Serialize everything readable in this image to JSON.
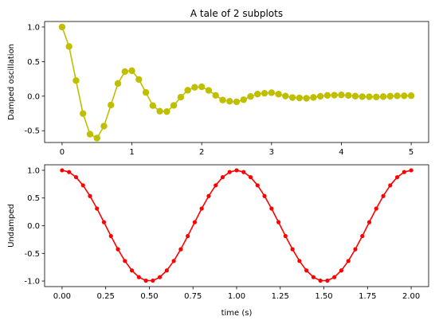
{
  "figure": {
    "title": "A tale of 2 subplots"
  },
  "chart_data": [
    {
      "type": "line",
      "title": "A tale of 2 subplots",
      "xlabel": "",
      "ylabel": "Damped oscillation",
      "xlim": [
        -0.25,
        5.25
      ],
      "ylim": [
        -0.67,
        1.08
      ],
      "xticks": [
        0,
        1,
        2,
        3,
        4,
        5
      ],
      "xtick_labels": [
        "0",
        "1",
        "2",
        "3",
        "4",
        "5"
      ],
      "yticks": [
        -0.5,
        0.0,
        0.5,
        1.0
      ],
      "ytick_labels": [
        "-0.5",
        "0.0",
        "0.5",
        "1.0"
      ],
      "grid": false,
      "color": "#bfbf00",
      "marker": "circle",
      "x": [
        0.0,
        0.1,
        0.2,
        0.3,
        0.4,
        0.5,
        0.6,
        0.7,
        0.8,
        0.9,
        1.0,
        1.1,
        1.2,
        1.3,
        1.4,
        1.5,
        1.6,
        1.7,
        1.8,
        1.9,
        2.0,
        2.1,
        2.2,
        2.3,
        2.4,
        2.5,
        2.6,
        2.7,
        2.8,
        2.9,
        3.0,
        3.1,
        3.2,
        3.3,
        3.4,
        3.5,
        3.6,
        3.7,
        3.8,
        3.9,
        4.0,
        4.1,
        4.2,
        4.3,
        4.4,
        4.5,
        4.6,
        4.7,
        4.8,
        4.9,
        5.0
      ],
      "values": [
        1.0,
        0.7189,
        0.2257,
        -0.2518,
        -0.5502,
        -0.6065,
        -0.4327,
        -0.1277,
        0.1835,
        0.3553,
        0.3679,
        0.2418,
        0.0542,
        -0.1368,
        -0.2172,
        -0.2231,
        -0.1342,
        -0.0146,
        0.0857,
        0.1283,
        0.1353,
        0.0836,
        0.0113,
        -0.0559,
        -0.0737,
        -0.0821,
        -0.0514,
        -0.0047,
        0.0307,
        0.0417,
        0.0498,
        0.0293,
        0.0014,
        -0.0197,
        -0.0252,
        -0.0302,
        -0.0181,
        -0.0016,
        0.0113,
        0.0148,
        0.0183,
        0.0105,
        0.0006,
        -0.0069,
        -0.0085,
        -0.0111,
        -0.0066,
        -0.0007,
        0.0042,
        0.0052,
        0.0067
      ]
    },
    {
      "type": "line",
      "title": "",
      "xlabel": "time (s)",
      "ylabel": "Undamped",
      "xlim": [
        -0.1,
        2.1
      ],
      "ylim": [
        -1.1,
        1.1
      ],
      "xticks": [
        0.0,
        0.25,
        0.5,
        0.75,
        1.0,
        1.25,
        1.5,
        1.75,
        2.0
      ],
      "xtick_labels": [
        "0.00",
        "0.25",
        "0.50",
        "0.75",
        "1.00",
        "1.25",
        "1.50",
        "1.75",
        "2.00"
      ],
      "yticks": [
        -1.0,
        -0.5,
        0.0,
        0.5,
        1.0
      ],
      "ytick_labels": [
        "-1.0",
        "-0.5",
        "0.0",
        "0.5",
        "1.0"
      ],
      "grid": false,
      "color": "#ff0000",
      "marker": "dot",
      "x": [
        0.0,
        0.04,
        0.08,
        0.12,
        0.16,
        0.2,
        0.24,
        0.28,
        0.32,
        0.36,
        0.4,
        0.44,
        0.48,
        0.52,
        0.56,
        0.6,
        0.64,
        0.68,
        0.72,
        0.76,
        0.8,
        0.84,
        0.88,
        0.92,
        0.96,
        1.0,
        1.04,
        1.08,
        1.12,
        1.16,
        1.2,
        1.24,
        1.28,
        1.32,
        1.36,
        1.4,
        1.44,
        1.48,
        1.52,
        1.56,
        1.6,
        1.64,
        1.68,
        1.72,
        1.76,
        1.8,
        1.84,
        1.88,
        1.92,
        1.96,
        2.0
      ],
      "values": [
        1.0,
        0.9686,
        0.8763,
        0.729,
        0.5358,
        0.309,
        0.0628,
        -0.1874,
        -0.4258,
        -0.6374,
        -0.809,
        -0.9298,
        -0.9921,
        -0.9921,
        -0.9298,
        -0.809,
        -0.6374,
        -0.4258,
        -0.1874,
        0.0628,
        0.309,
        0.5358,
        0.729,
        0.8763,
        0.9686,
        1.0,
        0.9686,
        0.8763,
        0.729,
        0.5358,
        0.309,
        0.0628,
        -0.1874,
        -0.4258,
        -0.6374,
        -0.809,
        -0.9298,
        -0.9921,
        -0.9921,
        -0.9298,
        -0.809,
        -0.6374,
        -0.4258,
        -0.1874,
        0.0628,
        0.309,
        0.5358,
        0.729,
        0.8763,
        0.9686,
        1.0
      ]
    }
  ]
}
